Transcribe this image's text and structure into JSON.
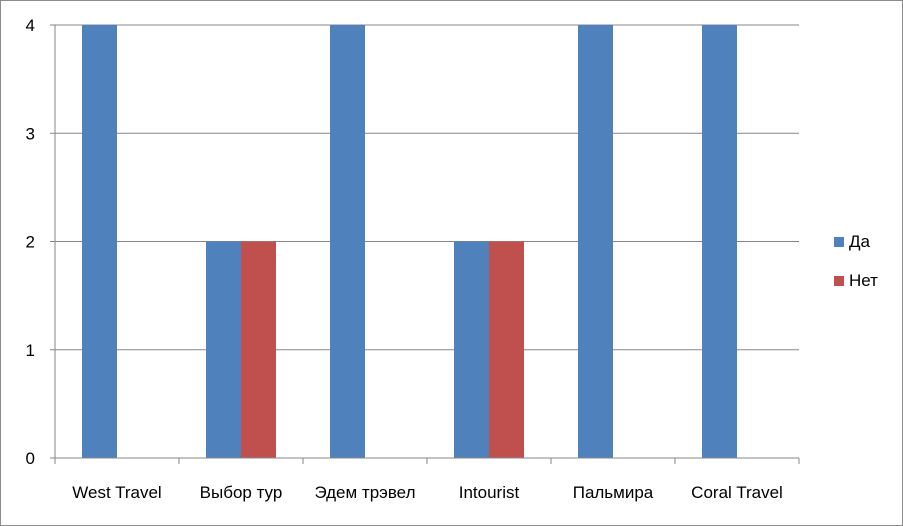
{
  "chart_data": {
    "type": "bar",
    "title": "",
    "xlabel": "",
    "ylabel": "",
    "categories": [
      "West Travel",
      "Выбор тур",
      "Эдем трэвел",
      "Intourist",
      "Пальмира",
      "Coral Travel"
    ],
    "series": [
      {
        "name": "Да",
        "color": "#4f81bd",
        "values": [
          4,
          2,
          4,
          2,
          4,
          4
        ]
      },
      {
        "name": "Нет",
        "color": "#c0504d",
        "values": [
          0,
          2,
          0,
          2,
          0,
          0
        ]
      }
    ],
    "ylim": [
      0,
      4
    ],
    "yticks": [
      "0",
      "1",
      "2",
      "3",
      "4"
    ],
    "grid": true,
    "legend_position": "right"
  }
}
